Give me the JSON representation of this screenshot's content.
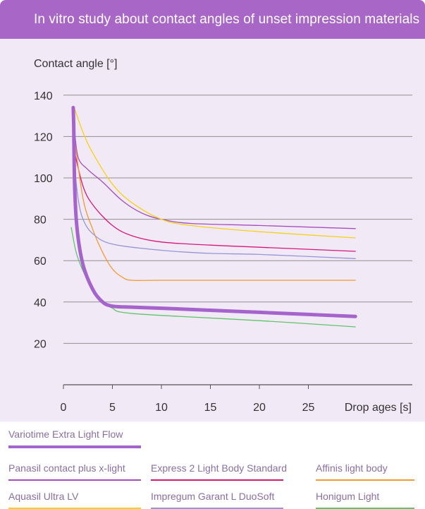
{
  "header": {
    "title": "In vitro study about contact angles of unset impression materials"
  },
  "colors": {
    "header": "#a866c6",
    "panel": "#f2e9f6",
    "legend_text": "#8a6ea0"
  },
  "chart_data": {
    "type": "line",
    "title": "In vitro study about contact angles of unset impression materials",
    "ylabel": "Contact angle [°]",
    "xlabel": "Drop ages [s]",
    "xlim": [
      0,
      30
    ],
    "ylim": [
      0,
      140
    ],
    "xticks": [
      0,
      5,
      10,
      15,
      20,
      25
    ],
    "yticks": [
      20,
      40,
      60,
      80,
      100,
      120,
      140
    ],
    "grid": "horizontal",
    "legend_position": "bottom",
    "series": [
      {
        "name": "Variotime Extra Light Flow",
        "color": "#a564cc",
        "width": 5,
        "points": [
          [
            1.0,
            134
          ],
          [
            1.05,
            125
          ],
          [
            1.15,
            95
          ],
          [
            1.4,
            75
          ],
          [
            2,
            58
          ],
          [
            3,
            46
          ],
          [
            4,
            40
          ],
          [
            5,
            38
          ],
          [
            7,
            37.5
          ],
          [
            10,
            37
          ],
          [
            15,
            36
          ],
          [
            20,
            35
          ],
          [
            25,
            34
          ],
          [
            29.8,
            33
          ]
        ]
      },
      {
        "name": "Panasil contact plus x-light",
        "color": "#a44fbb",
        "width": 1.3,
        "points": [
          [
            1.1,
            125
          ],
          [
            1.5,
            110
          ],
          [
            2.5,
            104
          ],
          [
            4,
            98
          ],
          [
            6,
            89
          ],
          [
            8,
            83
          ],
          [
            10,
            80
          ],
          [
            13,
            78
          ],
          [
            20,
            77
          ],
          [
            29.8,
            75.5
          ]
        ]
      },
      {
        "name": "Express 2 Light Body Standard",
        "color": "#d4187a",
        "width": 1.3,
        "points": [
          [
            1.1,
            113
          ],
          [
            2,
            96
          ],
          [
            3,
            87
          ],
          [
            5,
            77
          ],
          [
            7,
            72
          ],
          [
            10,
            69
          ],
          [
            15,
            67.5
          ],
          [
            20,
            66.5
          ],
          [
            29.8,
            64.5
          ]
        ]
      },
      {
        "name": "Affinis light body",
        "color": "#f29a2e",
        "width": 1.3,
        "points": [
          [
            1.1,
            120
          ],
          [
            2,
            90
          ],
          [
            3,
            75
          ],
          [
            4,
            64
          ],
          [
            5,
            56
          ],
          [
            6,
            52
          ],
          [
            7,
            50.5
          ],
          [
            10,
            50.5
          ],
          [
            20,
            50.5
          ],
          [
            29.8,
            50.5
          ]
        ]
      },
      {
        "name": "Aquasil Ultra LV",
        "color": "#f5d216",
        "width": 1.3,
        "points": [
          [
            1.1,
            134
          ],
          [
            2,
            122
          ],
          [
            3,
            112
          ],
          [
            5,
            97
          ],
          [
            7,
            88
          ],
          [
            10,
            80
          ],
          [
            13,
            77
          ],
          [
            20,
            74
          ],
          [
            29.8,
            71
          ]
        ]
      },
      {
        "name": "Impregum Garant L DuoSoft",
        "color": "#9696d6",
        "width": 1.3,
        "points": [
          [
            1.1,
            107
          ],
          [
            1.5,
            90
          ],
          [
            2,
            80
          ],
          [
            3,
            73
          ],
          [
            5,
            68
          ],
          [
            10,
            65
          ],
          [
            15,
            63.5
          ],
          [
            20,
            63
          ],
          [
            29.8,
            61
          ]
        ]
      },
      {
        "name": "Honigum Light",
        "color": "#5fc46a",
        "width": 1.3,
        "points": [
          [
            0.8,
            76
          ],
          [
            1.3,
            64
          ],
          [
            2,
            55
          ],
          [
            3,
            46
          ],
          [
            4,
            40
          ],
          [
            5,
            37
          ],
          [
            6,
            35
          ],
          [
            10,
            33.5
          ],
          [
            20,
            31
          ],
          [
            29.8,
            28
          ]
        ]
      }
    ]
  }
}
